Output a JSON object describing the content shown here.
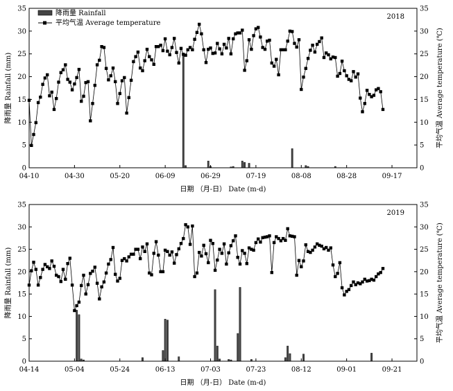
{
  "chart_data": [
    {
      "type": "bar+line",
      "year_label": "2018",
      "xlabel": "日期 （月-日） Date (m-d)",
      "ylabel_left": "降雨量 Rainfall (mm)",
      "ylabel_right": "平均气温 Average temperature (℃)",
      "legend": [
        "降雨量 Rainfall",
        "平均气温 Average temperature"
      ],
      "ylim_left": [
        0,
        35
      ],
      "ylim_right": [
        0,
        35
      ],
      "y_ticks": [
        0,
        5,
        10,
        15,
        20,
        25,
        30,
        35
      ],
      "x_start": "04-10",
      "x_end": "09-28",
      "x_ticks": [
        "04-10",
        "04-30",
        "05-20",
        "06-09",
        "06-29",
        "07-19",
        "08-08",
        "08-28",
        "09-17"
      ],
      "series": [
        {
          "name": "降雨量 Rainfall",
          "kind": "bar",
          "dates": [
            "06-17",
            "06-18",
            "06-28",
            "06-29",
            "07-08",
            "07-09",
            "07-13",
            "07-14",
            "07-16",
            "08-04",
            "08-10",
            "08-11",
            "08-23"
          ],
          "values": [
            25.0,
            0.5,
            1.5,
            0.3,
            0.2,
            0.3,
            1.5,
            1.2,
            1.0,
            4.2,
            0.5,
            0.3,
            0.3
          ]
        },
        {
          "name": "平均气温 Average temperature",
          "kind": "line",
          "values": [
            14.8,
            4.9,
            7.3,
            9.9,
            14.3,
            15.5,
            18.3,
            19.7,
            20.4,
            15.8,
            16.6,
            12.8,
            15.2,
            18.8,
            20.9,
            21.5,
            22.6,
            19.4,
            18.8,
            17.1,
            18.4,
            19.8,
            21.6,
            14.6,
            15.7,
            18.7,
            18.9,
            10.3,
            14.1,
            18.1,
            22.6,
            23.6,
            26.6,
            26.4,
            21.8,
            19.3,
            20.2,
            21.9,
            18.9,
            14.1,
            16.3,
            19.1,
            19.8,
            12.0,
            15.4,
            19.2,
            23.3,
            24.4,
            25.4,
            21.9,
            21.3,
            23.5,
            26.0,
            24.4,
            23.7,
            22.7,
            26.6,
            26.6,
            26.9,
            25.7,
            28.3,
            25.6,
            24.8,
            26.4,
            28.4,
            25.3,
            23.0,
            26.2,
            24.9,
            24.7,
            25.9,
            26.4,
            25.9,
            28.2,
            29.7,
            31.5,
            29.4,
            25.9,
            23.1,
            26.0,
            26.3,
            25.1,
            25.2,
            27.3,
            26.1,
            25.0,
            27.1,
            26.3,
            28.4,
            25.0,
            28.3,
            29.4,
            29.6,
            29.6,
            30.2,
            21.4,
            23.5,
            28.1,
            26.0,
            29.0,
            30.5,
            30.8,
            28.7,
            26.4,
            26.0,
            27.8,
            28.0,
            23.0,
            22.3,
            23.8,
            20.4,
            25.9,
            25.9,
            25.9,
            27.8,
            30.0,
            29.9,
            27.3,
            26.5,
            28.1,
            17.2,
            19.9,
            21.8,
            24.0,
            25.8,
            26.9,
            25.4,
            27.1,
            27.7,
            28.5,
            24.2,
            25.2,
            24.8,
            23.9,
            24.3,
            24.2,
            20.1,
            20.7,
            23.4,
            21.3,
            20.2,
            19.4,
            19.1,
            21.1,
            19.9,
            20.6,
            15.3,
            12.3,
            14.1,
            17.0,
            16.1,
            15.6,
            15.9,
            17.1,
            17.4,
            16.7,
            12.8
          ]
        }
      ]
    },
    {
      "type": "bar+line",
      "year_label": "2019",
      "xlabel": "日期 （月-日） Date (m-d)",
      "ylabel_left": "降雨量 Rainfall (mm)",
      "ylabel_right": "平均气温 Average temperature (℃)",
      "ylim_left": [
        0,
        35
      ],
      "ylim_right": [
        0,
        35
      ],
      "y_ticks": [
        0,
        5,
        10,
        15,
        20,
        25,
        30,
        35
      ],
      "x_start": "04-14",
      "x_end": "10-02",
      "x_ticks": [
        "04-14",
        "05-04",
        "05-24",
        "06-13",
        "07-03",
        "07-23",
        "08-12",
        "09-01",
        "09-21"
      ],
      "series": [
        {
          "name": "降雨量 Rainfall",
          "kind": "bar",
          "dates": [
            "05-05",
            "05-06",
            "05-07",
            "05-08",
            "06-03",
            "06-12",
            "06-13",
            "06-14",
            "06-19",
            "07-05",
            "07-06",
            "07-07",
            "07-11",
            "07-12",
            "07-15",
            "07-16",
            "07-21",
            "08-05",
            "08-06",
            "08-07",
            "08-13",
            "09-12"
          ],
          "values": [
            11.4,
            10.4,
            0.5,
            0.3,
            0.8,
            2.4,
            9.4,
            9.2,
            1.0,
            16.0,
            3.4,
            0.5,
            0.4,
            0.3,
            6.2,
            16.5,
            0.4,
            0.8,
            3.4,
            1.7,
            1.6,
            1.8
          ]
        },
        {
          "name": "平均气温 Average temperature",
          "kind": "line",
          "values": [
            17.0,
            20.2,
            22.1,
            20.5,
            17.0,
            18.7,
            20.5,
            21.6,
            21.1,
            20.7,
            22.4,
            21.2,
            19.2,
            18.9,
            17.8,
            20.5,
            18.3,
            21.8,
            23.0,
            17.0,
            11.3,
            12.4,
            13.2,
            16.9,
            19.2,
            15.0,
            17.1,
            19.6,
            20.1,
            21.0,
            17.4,
            13.9,
            16.6,
            17.7,
            19.7,
            21.7,
            22.7,
            25.4,
            19.4,
            17.9,
            18.5,
            22.5,
            22.9,
            22.4,
            23.3,
            23.9,
            23.9,
            25.0,
            25.0,
            22.9,
            25.5,
            24.5,
            26.2,
            19.7,
            19.3,
            24.1,
            26.7,
            23.7,
            20.0,
            20.0,
            24.8,
            24.5,
            23.7,
            24.4,
            21.9,
            23.8,
            25.1,
            26.3,
            27.4,
            30.5,
            30.0,
            26.1,
            30.2,
            18.9,
            19.7,
            24.3,
            23.5,
            25.9,
            24.0,
            22.0,
            27.0,
            26.3,
            20.3,
            22.6,
            25.0,
            24.1,
            26.2,
            21.7,
            24.2,
            25.8,
            26.9,
            28.0,
            23.2,
            21.7,
            24.7,
            24.1,
            21.8,
            25.3,
            25.0,
            24.8,
            26.5,
            27.3,
            26.6,
            27.6,
            27.7,
            27.8,
            28.0,
            19.8,
            26.5,
            27.8,
            27.4,
            26.9,
            27.4,
            27.0,
            29.6,
            28.0,
            27.9,
            27.8,
            19.2,
            22.5,
            21.1,
            22.4,
            26.0,
            24.5,
            24.3,
            24.8,
            25.5,
            26.2,
            25.9,
            25.7,
            25.1,
            25.4,
            24.8,
            25.3,
            21.5,
            18.9,
            19.6,
            22.0,
            16.4,
            14.8,
            15.6,
            16.0,
            16.9,
            17.7,
            17.1,
            17.5,
            17.3,
            17.7,
            18.3,
            17.9,
            18.0,
            18.3,
            18.1,
            18.9,
            19.5,
            19.8,
            20.7
          ]
        }
      ]
    }
  ]
}
